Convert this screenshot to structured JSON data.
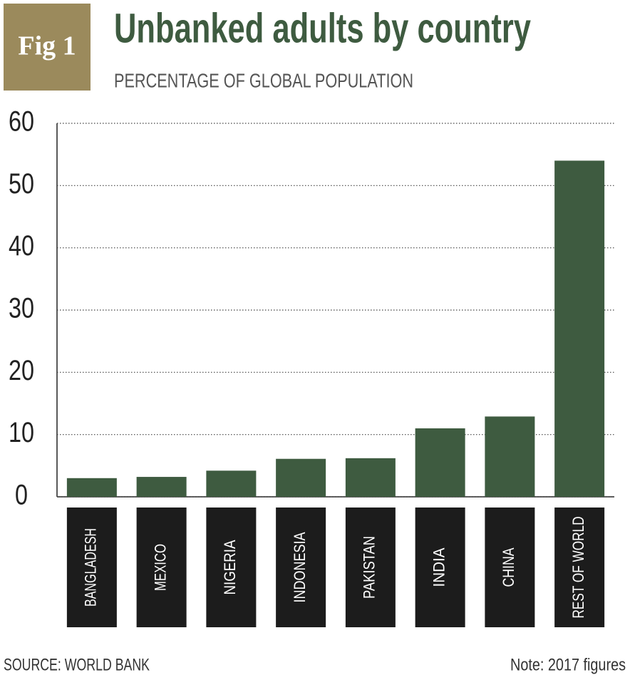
{
  "badge": "Fig 1",
  "chart_data": {
    "type": "bar",
    "title": "Unbanked adults by country",
    "subtitle": "PERCENTAGE OF GLOBAL POPULATION",
    "categories": [
      "BANGLADESH",
      "MEXICO",
      "NIGERIA",
      "INDONESIA",
      "PAKISTAN",
      "INDIA",
      "CHINA",
      "REST OF WORLD"
    ],
    "values": [
      3.0,
      3.2,
      4.2,
      6.1,
      6.2,
      11.0,
      12.9,
      54.0
    ],
    "color": "#3e5b40",
    "ylim": [
      0,
      60
    ],
    "yticks": [
      0,
      10,
      20,
      30,
      40,
      50,
      60
    ],
    "grid": true,
    "source": "SOURCE: WORLD BANK",
    "note": "Note: 2017 figures"
  }
}
